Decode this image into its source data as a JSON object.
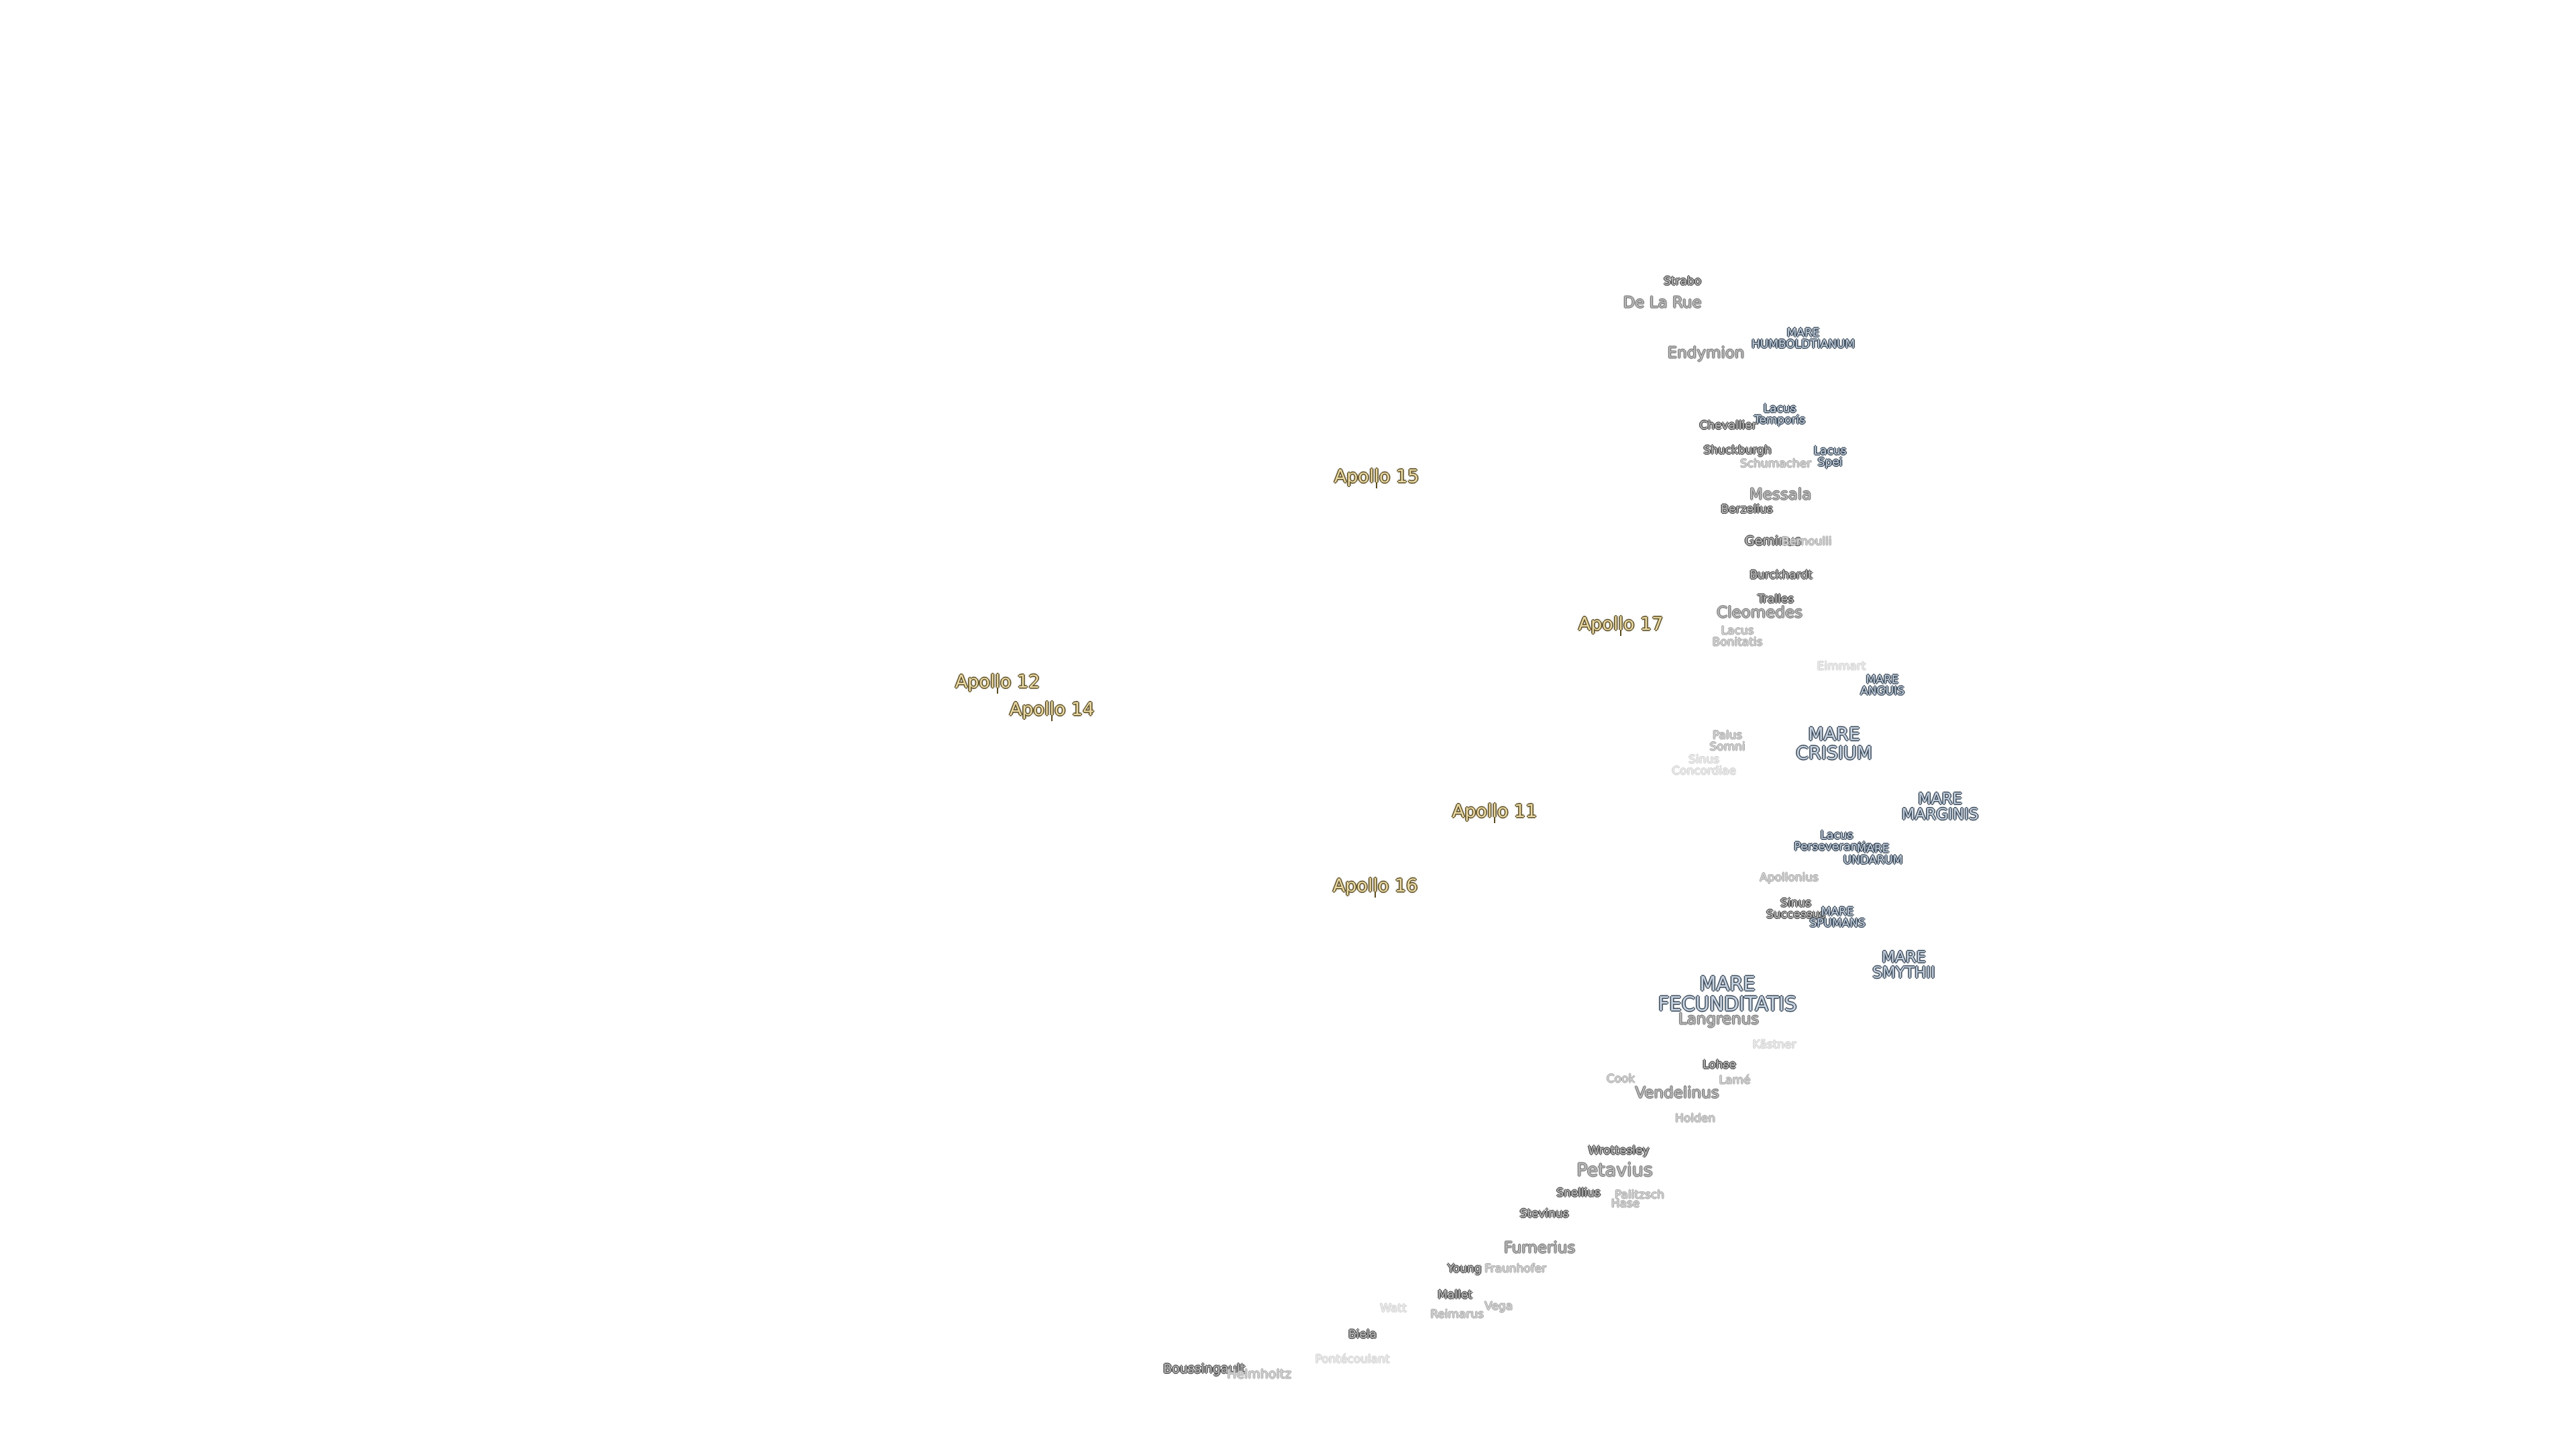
{
  "map": {
    "features": {
      "strabo": "Strabo",
      "de_la_rue": "De La Rue",
      "endymion": "Endymion",
      "mare_humboldtianum": "MARE\nHUMBOLDTIANUM",
      "lacus_temporis": "Lacus\nTemporis",
      "chevallier": "Chevallier",
      "shuckburgh": "Shuckburgh",
      "schumacher": "Schumacher",
      "lacus_spei": "Lacus\nSpei",
      "messala": "Messala",
      "berzelius": "Berzelius",
      "geminus": "Geminus",
      "bernoulli": "Bernoulli",
      "burckhardt": "Burckhardt",
      "tralles": "Tralles",
      "cleomedes": "Cleomedes",
      "lacus_bonitatis": "Lacus\nBonitatis",
      "eimmart": "Eimmart",
      "mare_anguis": "MARE\nANGUIS",
      "palus_somni": "Palus\nSomni",
      "sinus_concordiae": "Sinus\nConcordiae",
      "mare_crisium": "MARE\nCRISIUM",
      "mare_marginis": "MARE\nMARGINIS",
      "lacus_perseverantiae": "Lacus\nPerseverantiae",
      "mare_undarum": "MARE\nUNDARUM",
      "apollonius": "Apollonius",
      "sinus_successus": "Sinus\nSuccessus",
      "mare_spumans": "MARE\nSPUMANS",
      "mare_smythii": "MARE\nSMYTHII",
      "mare_fecunditatis": "MARE\nFECUNDITATIS",
      "langrenus": "Langrenus",
      "kastner": "Kästner",
      "lohse": "Lohse",
      "lame": "Lamé",
      "cook": "Cook",
      "vendelinus": "Vendelinus",
      "holden": "Holden",
      "wrottesley": "Wrottesley",
      "petavius": "Petavius",
      "snellius": "Snellius",
      "palitzsch": "Palitzsch",
      "hase": "Hase",
      "stevinus": "Stevinus",
      "furnerius": "Furnerius",
      "young": "Young",
      "fraunhofer": "Fraunhofer",
      "mallet": "Mallet",
      "vega": "Vega",
      "reimarus": "Reimarus",
      "watt": "Watt",
      "biela": "Biela",
      "pontecoulant": "Pontécoulant",
      "boussingault": "Boussingault",
      "helmholtz": "Helmholtz"
    },
    "landing_sites": {
      "apollo_11": "Apollo 11",
      "apollo_12": "Apollo 12",
      "apollo_14": "Apollo 14",
      "apollo_15": "Apollo 15",
      "apollo_16": "Apollo 16",
      "apollo_17": "Apollo 17"
    }
  }
}
